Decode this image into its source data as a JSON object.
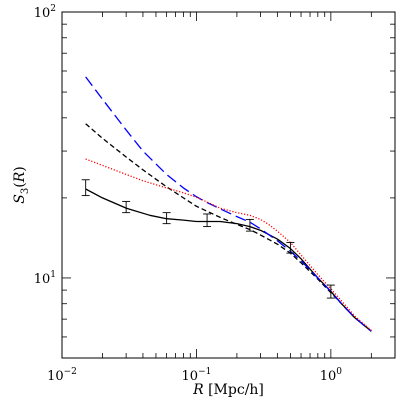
{
  "chart_data": {
    "type": "line",
    "xlabel": "R [Mpc/h]",
    "ylabel": "S_3(R)",
    "x_scale": "log",
    "y_scale": "log",
    "xlim": [
      0.01,
      3.0
    ],
    "ylim": [
      5.0,
      100.0
    ],
    "x_major_ticks": [
      {
        "value": 0.01,
        "label_base": "10",
        "label_exp": "−2"
      },
      {
        "value": 0.1,
        "label_base": "10",
        "label_exp": "−1"
      },
      {
        "value": 1,
        "label_base": "10",
        "label_exp": "0"
      }
    ],
    "y_major_ticks": [
      {
        "value": 10,
        "label_base": "10",
        "label_exp": "1"
      },
      {
        "value": 100,
        "label_base": "10",
        "label_exp": "2"
      }
    ],
    "grid": false,
    "legend": "none",
    "series": [
      {
        "color": "#000000",
        "dash": "solid",
        "x": [
          0.015,
          0.02,
          0.03,
          0.045,
          0.06,
          0.08,
          0.1,
          0.12,
          0.15,
          0.2,
          0.25,
          0.3,
          0.4,
          0.5,
          0.6,
          0.8,
          1.0,
          1.2,
          1.5,
          2.0
        ],
        "y": [
          21.6,
          20.0,
          18.3,
          17.2,
          16.7,
          16.5,
          16.3,
          16.3,
          16.3,
          16.0,
          15.6,
          15.1,
          14.0,
          12.9,
          11.8,
          10.0,
          8.9,
          8.0,
          7.1,
          6.3
        ]
      },
      {
        "color": "#000000",
        "dash": "dashed",
        "x": [
          0.015,
          0.02,
          0.03,
          0.04,
          0.06,
          0.08,
          0.1,
          0.15,
          0.2,
          0.25,
          0.3,
          0.4,
          0.5,
          0.6,
          0.8,
          1.0,
          1.2,
          1.5,
          2.0
        ],
        "y": [
          38.0,
          33.5,
          28.5,
          25.5,
          22.0,
          20.0,
          18.6,
          16.9,
          15.9,
          15.2,
          14.5,
          13.4,
          12.4,
          11.4,
          9.9,
          8.8,
          8.0,
          7.1,
          6.3
        ]
      },
      {
        "color": "#0000ff",
        "dash": "long-dashed",
        "x": [
          0.015,
          0.02,
          0.03,
          0.04,
          0.06,
          0.08,
          0.1,
          0.12,
          0.15,
          0.2,
          0.25,
          0.3,
          0.4,
          0.5,
          0.6,
          0.8,
          1.0,
          1.2,
          1.5,
          2.0
        ],
        "y": [
          57.0,
          47.0,
          36.0,
          30.0,
          24.5,
          21.8,
          20.2,
          19.2,
          18.2,
          17.0,
          16.2,
          15.3,
          13.8,
          12.6,
          11.6,
          10.0,
          8.9,
          8.0,
          7.1,
          6.3
        ]
      },
      {
        "color": "#ff0000",
        "dash": "dotted",
        "x": [
          0.015,
          0.02,
          0.03,
          0.04,
          0.06,
          0.08,
          0.1,
          0.12,
          0.15,
          0.2,
          0.25,
          0.3,
          0.35,
          0.4,
          0.5,
          0.6,
          0.8,
          1.0,
          1.2,
          1.5,
          2.0
        ],
        "y": [
          28.0,
          26.5,
          24.5,
          23.2,
          21.8,
          20.9,
          20.1,
          19.3,
          18.3,
          17.6,
          17.2,
          16.6,
          15.8,
          15.0,
          13.6,
          12.2,
          10.3,
          9.1,
          8.2,
          7.2,
          6.35
        ]
      }
    ],
    "error_bars": {
      "color": "#000000",
      "points": [
        {
          "x": 0.015,
          "y_low": 20.4,
          "y_high": 23.4
        },
        {
          "x": 0.03,
          "y_low": 17.6,
          "y_high": 19.4
        },
        {
          "x": 0.06,
          "y_low": 16.0,
          "y_high": 17.6
        },
        {
          "x": 0.12,
          "y_low": 15.6,
          "y_high": 17.4
        },
        {
          "x": 0.25,
          "y_low": 15.0,
          "y_high": 16.6
        },
        {
          "x": 0.5,
          "y_low": 12.4,
          "y_high": 13.6
        },
        {
          "x": 1.0,
          "y_low": 8.4,
          "y_high": 9.4
        }
      ]
    }
  }
}
